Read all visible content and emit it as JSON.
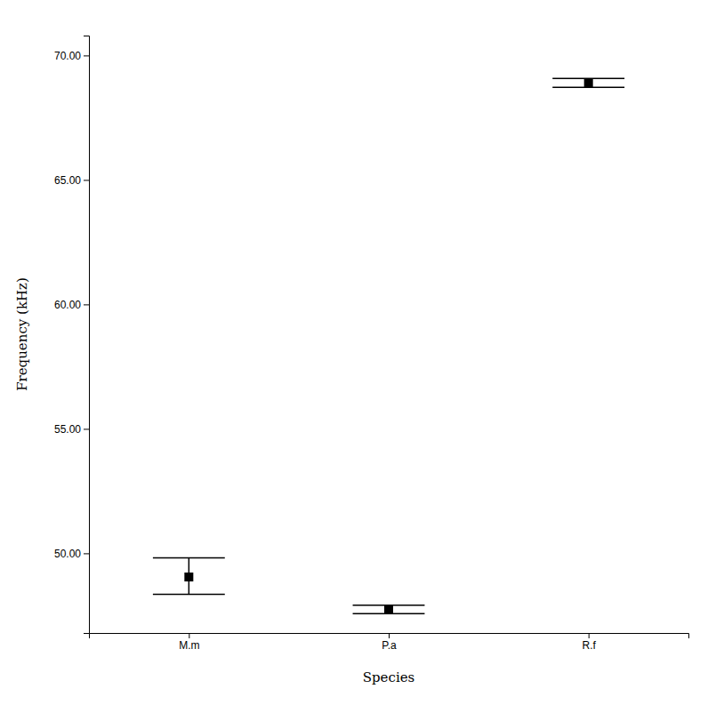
{
  "chart_data": {
    "type": "errorbar",
    "categories": [
      "M.m",
      "P.a",
      "R.f"
    ],
    "values": [
      49.05,
      47.75,
      68.9
    ],
    "ci_lower": [
      48.35,
      47.58,
      68.72
    ],
    "ci_upper": [
      49.82,
      47.92,
      69.08
    ],
    "xlabel": "Species",
    "ylabel": "Frequency (kHz)",
    "ylim": [
      46.8,
      70.8
    ],
    "yticks": [
      {
        "value": 50.0,
        "label": "50.00"
      },
      {
        "value": 55.0,
        "label": "55.00"
      },
      {
        "value": 60.0,
        "label": "60.00"
      },
      {
        "value": 65.0,
        "label": "65.00"
      },
      {
        "value": 70.0,
        "label": "70.00"
      }
    ],
    "color": "#000000",
    "marker": "square",
    "grid": false
  }
}
